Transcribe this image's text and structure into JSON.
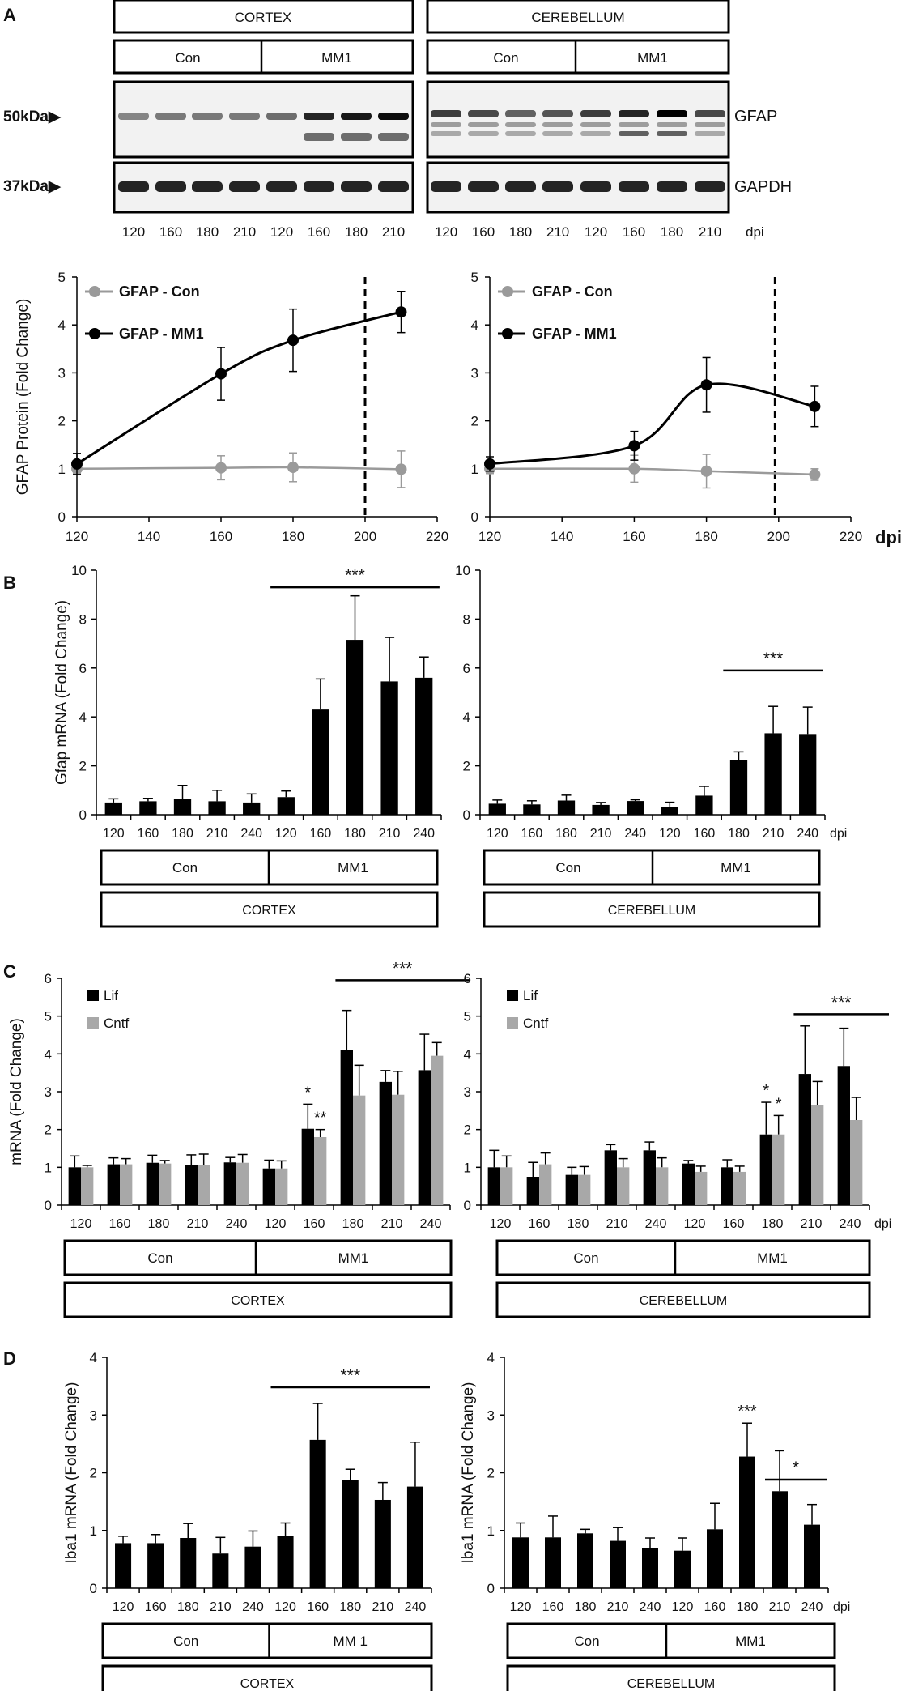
{
  "panels": {
    "A": "A",
    "B": "B",
    "C": "C",
    "D": "D"
  },
  "blot": {
    "region_labels": [
      "CORTEX",
      "CEREBELLUM"
    ],
    "group_labels": [
      "Con",
      "MM1",
      "Con",
      "MM1"
    ],
    "marker_labels": [
      "50kDa▶",
      "37kDa▶"
    ],
    "band_labels": [
      "GFAP",
      "GAPDH"
    ],
    "lane_dpi": [
      "120",
      "160",
      "180",
      "210",
      "120",
      "160",
      "180",
      "210"
    ],
    "dpi_label": "dpi"
  },
  "colors": {
    "con_series": "#9a9a9a",
    "mm1_series": "#000000",
    "lif": "#000000",
    "cntf": "#a8a8a8"
  },
  "chart_data": [
    {
      "id": "A-left",
      "type": "line",
      "ylabel": "GFAP Protein (Fold Change)",
      "xlabel": "dpi",
      "xlim": [
        120,
        220
      ],
      "ylim": [
        0,
        5
      ],
      "xticks": [
        120,
        140,
        160,
        180,
        200,
        220
      ],
      "yticks": [
        0,
        1,
        2,
        3,
        4,
        5
      ],
      "vline_x": 200,
      "x": [
        120,
        160,
        180,
        210
      ],
      "series": [
        {
          "name": "GFAP - Con",
          "values": [
            1.0,
            1.02,
            1.03,
            0.99
          ],
          "errors": [
            0.1,
            0.25,
            0.3,
            0.38
          ]
        },
        {
          "name": "GFAP - MM1",
          "values": [
            1.1,
            2.98,
            3.68,
            4.27
          ],
          "errors": [
            0.22,
            0.55,
            0.65,
            0.43
          ]
        }
      ]
    },
    {
      "id": "A-right",
      "type": "line",
      "ylabel": "",
      "xlabel": "dpi",
      "xlim": [
        120,
        220
      ],
      "ylim": [
        0,
        5
      ],
      "xticks": [
        120,
        140,
        160,
        180,
        200,
        220
      ],
      "yticks": [
        0,
        1,
        2,
        3,
        4,
        5
      ],
      "vline_x": 199,
      "x": [
        120,
        160,
        180,
        210
      ],
      "series": [
        {
          "name": "GFAP - Con",
          "values": [
            1.0,
            1.0,
            0.95,
            0.88
          ],
          "errors": [
            0.1,
            0.28,
            0.35,
            0.12
          ]
        },
        {
          "name": "GFAP - MM1",
          "values": [
            1.1,
            1.48,
            2.75,
            2.3
          ],
          "errors": [
            0.15,
            0.3,
            0.57,
            0.42
          ]
        }
      ]
    },
    {
      "id": "B-left",
      "type": "bar",
      "ylabel": "Gfap mRNA (Fold Change)",
      "ylim": [
        0,
        10
      ],
      "yticks": [
        0,
        2,
        4,
        6,
        8,
        10
      ],
      "categories": [
        "120",
        "160",
        "180",
        "210",
        "240",
        "120",
        "160",
        "180",
        "210",
        "240"
      ],
      "values": [
        0.5,
        0.55,
        0.65,
        0.55,
        0.5,
        0.72,
        4.3,
        7.15,
        5.45,
        5.6
      ],
      "errors": [
        0.15,
        0.12,
        0.55,
        0.45,
        0.35,
        0.25,
        1.25,
        1.8,
        1.8,
        0.85
      ],
      "significance": {
        "label": "***",
        "from": 5,
        "to": 9,
        "y": 9.3
      },
      "group_labels": [
        "Con",
        "MM1"
      ],
      "region_label": "CORTEX",
      "unit_label": ""
    },
    {
      "id": "B-right",
      "type": "bar",
      "ylabel": "",
      "ylim": [
        0,
        10
      ],
      "yticks": [
        0,
        2,
        4,
        6,
        8,
        10
      ],
      "categories": [
        "120",
        "160",
        "180",
        "210",
        "240",
        "120",
        "160",
        "180",
        "210",
        "240"
      ],
      "values": [
        0.45,
        0.42,
        0.58,
        0.4,
        0.56,
        0.33,
        0.78,
        2.22,
        3.33,
        3.3
      ],
      "errors": [
        0.15,
        0.15,
        0.22,
        0.1,
        0.05,
        0.18,
        0.38,
        0.35,
        1.1,
        1.1
      ],
      "significance": {
        "label": "***",
        "from": 7,
        "to": 9,
        "y": 5.9
      },
      "group_labels": [
        "Con",
        "MM1"
      ],
      "region_label": "CEREBELLUM",
      "unit_label": "dpi"
    },
    {
      "id": "C-left",
      "type": "bar",
      "ylabel": "mRNA (Fold Change)",
      "ylim": [
        0,
        6
      ],
      "yticks": [
        0,
        1,
        2,
        3,
        4,
        5,
        6
      ],
      "categories": [
        "120",
        "160",
        "180",
        "210",
        "240",
        "120",
        "160",
        "180",
        "210",
        "240"
      ],
      "series": [
        {
          "name": "Lif",
          "values": [
            1.0,
            1.08,
            1.12,
            1.05,
            1.13,
            0.97,
            2.02,
            4.1,
            3.26,
            3.57
          ],
          "errors": [
            0.3,
            0.17,
            0.2,
            0.28,
            0.13,
            0.22,
            0.65,
            1.05,
            0.3,
            0.95
          ]
        },
        {
          "name": "Cntf",
          "values": [
            1.0,
            1.08,
            1.1,
            1.05,
            1.12,
            0.97,
            1.8,
            2.9,
            2.92,
            3.95
          ],
          "errors": [
            0.05,
            0.15,
            0.08,
            0.3,
            0.22,
            0.2,
            0.2,
            0.8,
            0.62,
            0.35
          ]
        }
      ],
      "annotations": [
        {
          "label": "*",
          "index": 6,
          "series": 0
        },
        {
          "label": "**",
          "index": 6,
          "series": 1
        }
      ],
      "significance": {
        "label": "***",
        "from": 7,
        "to": 10,
        "y": 5.95
      },
      "group_labels": [
        "Con",
        "MM1"
      ],
      "region_label": "CORTEX",
      "unit_label": ""
    },
    {
      "id": "C-right",
      "type": "bar",
      "ylabel": "",
      "ylim": [
        0,
        6
      ],
      "yticks": [
        0,
        1,
        2,
        3,
        4,
        5,
        6
      ],
      "categories": [
        "120",
        "160",
        "180",
        "210",
        "240",
        "120",
        "160",
        "180",
        "210",
        "240"
      ],
      "series": [
        {
          "name": "Lif",
          "values": [
            1.0,
            0.75,
            0.8,
            1.45,
            1.45,
            1.1,
            1.0,
            1.87,
            3.47,
            3.68
          ],
          "errors": [
            0.45,
            0.38,
            0.2,
            0.15,
            0.22,
            0.08,
            0.2,
            0.85,
            1.27,
            1.0
          ]
        },
        {
          "name": "Cntf",
          "values": [
            1.0,
            1.08,
            0.8,
            1.0,
            1.0,
            0.88,
            0.88,
            1.87,
            2.65,
            2.25
          ],
          "errors": [
            0.3,
            0.3,
            0.22,
            0.23,
            0.25,
            0.15,
            0.15,
            0.5,
            0.62,
            0.6
          ]
        }
      ],
      "annotations": [
        {
          "label": "*",
          "index": 7,
          "series": 0
        },
        {
          "label": "*",
          "index": 7,
          "series": 1
        }
      ],
      "significance": {
        "label": "***",
        "from": 8,
        "to": 10,
        "y": 5.05
      },
      "group_labels": [
        "Con",
        "MM1"
      ],
      "region_label": "CEREBELLUM",
      "unit_label": "dpi"
    },
    {
      "id": "D-left",
      "type": "bar",
      "ylabel": "Iba1 mRNA (Fold Change)",
      "ylim": [
        0,
        4
      ],
      "yticks": [
        0,
        1,
        2,
        3,
        4
      ],
      "categories": [
        "120",
        "160",
        "180",
        "210",
        "240",
        "120",
        "160",
        "180",
        "210",
        "240"
      ],
      "values": [
        0.78,
        0.78,
        0.87,
        0.6,
        0.72,
        0.9,
        2.57,
        1.88,
        1.53,
        1.76
      ],
      "errors": [
        0.12,
        0.15,
        0.25,
        0.28,
        0.27,
        0.23,
        0.63,
        0.18,
        0.3,
        0.77
      ],
      "significance": {
        "label": "***",
        "from": 5,
        "to": 9,
        "y": 3.48
      },
      "group_labels": [
        "Con",
        "MM 1"
      ],
      "region_label": "CORTEX",
      "unit_label": ""
    },
    {
      "id": "D-right",
      "type": "bar",
      "ylabel": "Iba1 mRNA (Fold Change)",
      "ylim": [
        0,
        4
      ],
      "yticks": [
        0,
        1,
        2,
        3,
        4
      ],
      "categories": [
        "120",
        "160",
        "180",
        "210",
        "240",
        "120",
        "160",
        "180",
        "210",
        "240"
      ],
      "values": [
        0.88,
        0.88,
        0.95,
        0.82,
        0.7,
        0.65,
        1.02,
        2.28,
        1.68,
        1.1
      ],
      "errors": [
        0.25,
        0.37,
        0.07,
        0.23,
        0.17,
        0.22,
        0.45,
        0.58,
        0.7,
        0.35
      ],
      "annotations": [
        {
          "label": "***",
          "index": 7
        }
      ],
      "significance": {
        "label": "*",
        "from": 8,
        "to": 9,
        "y": 1.88
      },
      "group_labels": [
        "Con",
        "MM1"
      ],
      "region_label": "CEREBELLUM",
      "unit_label": "dpi"
    }
  ]
}
